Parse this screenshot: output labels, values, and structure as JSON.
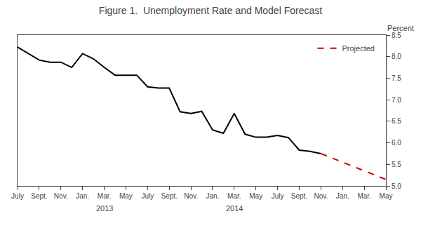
{
  "chart_data": {
    "type": "line",
    "title": "Figure 1.  Unemployment Rate and Model Forecast",
    "ylabel": "Percent",
    "categories": [
      "July",
      null,
      "Sept.",
      null,
      "Nov.",
      null,
      "Jan.",
      null,
      "Mar.",
      null,
      "May",
      null,
      "July",
      null,
      "Sept.",
      null,
      "Nov.",
      null,
      "Jan.",
      null,
      "Mar.",
      null,
      "May",
      null,
      "July",
      null,
      "Sept.",
      null,
      "Nov.",
      null,
      "Jan.",
      null,
      "Mar.",
      null,
      "May"
    ],
    "series": [
      {
        "color": "#000000",
        "line_style": "solid",
        "values": [
          8.22,
          8.07,
          7.92,
          7.87,
          7.87,
          7.75,
          8.07,
          7.95,
          7.75,
          7.57,
          7.57,
          7.57,
          7.3,
          7.27,
          7.27,
          6.72,
          6.68,
          6.73,
          6.3,
          6.22,
          6.68,
          6.2,
          6.13,
          6.13,
          6.17,
          6.12,
          5.83,
          5.8,
          5.75,
          null,
          null,
          null,
          null,
          null,
          null
        ]
      },
      {
        "name": "Projected",
        "color": "#cc0000",
        "line_style": "dashed",
        "values": [
          null,
          null,
          null,
          null,
          null,
          null,
          null,
          null,
          null,
          null,
          null,
          null,
          null,
          null,
          null,
          null,
          null,
          null,
          null,
          null,
          null,
          null,
          null,
          null,
          null,
          null,
          null,
          null,
          5.75,
          5.65,
          5.55,
          5.45,
          5.35,
          5.25,
          5.15
        ]
      }
    ],
    "annotations": [
      {
        "text": "2013",
        "x": 8
      },
      {
        "text": "2014",
        "x": 20
      }
    ],
    "ylim": [
      5.0,
      8.5
    ],
    "yticks": [
      {
        "value": 5,
        "label": "5.0"
      },
      5.5,
      {
        "value": 6,
        "label": "6.0"
      },
      6.5,
      {
        "value": 7,
        "label": "7.0"
      },
      7.5,
      {
        "value": 8,
        "label": "8.0"
      },
      8.5
    ],
    "grid": false,
    "legend": "upper right"
  }
}
